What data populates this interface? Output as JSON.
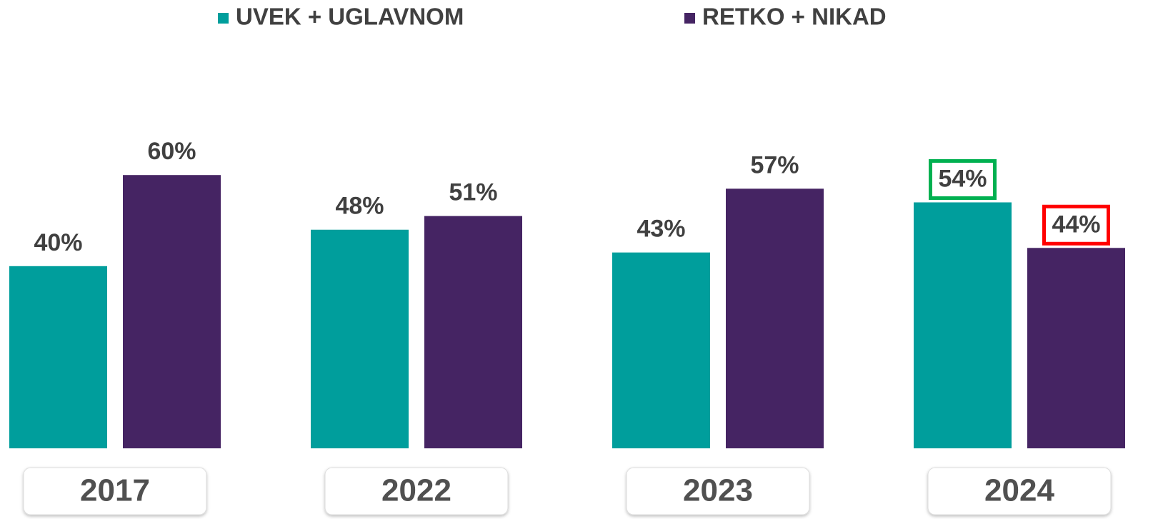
{
  "chart_data": {
    "type": "bar",
    "categories": [
      "2017",
      "2022",
      "2023",
      "2024"
    ],
    "series": [
      {
        "name": "UVEK + UGLAVNOM",
        "color": "#009e9c",
        "values": [
          40,
          48,
          43,
          54
        ],
        "value_labels": [
          "40%",
          "48%",
          "43%",
          "54%"
        ],
        "label_box_colors": [
          null,
          null,
          null,
          "#00b050"
        ]
      },
      {
        "name": "RETKO + NIKAD",
        "color": "#452463",
        "values": [
          60,
          51,
          57,
          44
        ],
        "value_labels": [
          "60%",
          "51%",
          "57%",
          "44%"
        ],
        "label_box_colors": [
          null,
          null,
          null,
          "#ff0000"
        ]
      }
    ],
    "legend": "top"
  }
}
